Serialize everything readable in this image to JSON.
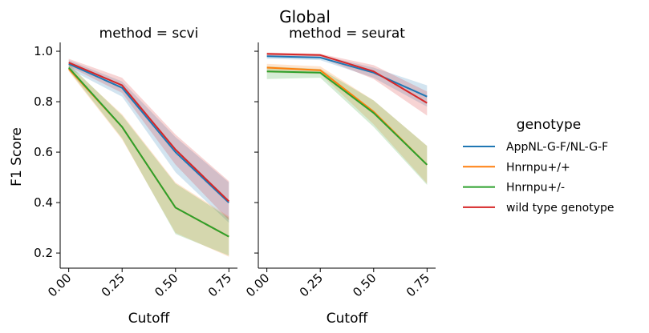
{
  "chart_data": {
    "type": "line",
    "title": "Global",
    "ylabel": "F1 Score",
    "ylim": [
      0.14,
      1.035
    ],
    "yticks": [
      0.2,
      0.4,
      0.6,
      0.8,
      1.0
    ],
    "ytick_labels": [
      "0.2",
      "0.4",
      "0.6",
      "0.8",
      "1.0"
    ],
    "legend": {
      "title": "genotype",
      "placement": "right"
    },
    "series_colors": {
      "AppNL-G-F/NL-G-F": "#1f77b4",
      "Hnrnpu+/+": "#ff7f0e",
      "Hnrnpu+/-": "#2ca02c",
      "wild type genotype": "#d62728"
    },
    "facets": [
      {
        "title": "method = scvi",
        "xlabel": "Cutoff",
        "xlim": [
          -0.04,
          0.79
        ],
        "xticks": [
          0,
          0.25,
          0.5,
          0.75
        ],
        "xtick_labels": [
          "0.00",
          "0.25",
          "0.50",
          "0.75"
        ],
        "x": [
          0,
          0.25,
          0.5,
          0.75
        ],
        "series": [
          {
            "name": "AppNL-G-F/NL-G-F",
            "values": [
              0.95,
              0.855,
              0.6,
              0.4
            ],
            "ci_low": [
              0.93,
              0.82,
              0.52,
              0.32
            ],
            "ci_high": [
              0.965,
              0.88,
              0.66,
              0.48
            ]
          },
          {
            "name": "Hnrnpu+/+",
            "values": [
              0.93,
              0.7,
              0.38,
              0.265
            ],
            "ci_low": [
              0.92,
              0.65,
              0.28,
              0.185
            ],
            "ci_high": [
              0.945,
              0.75,
              0.48,
              0.345
            ]
          },
          {
            "name": "Hnrnpu+/-",
            "values": [
              0.935,
              0.7,
              0.38,
              0.265
            ],
            "ci_low": [
              0.925,
              0.655,
              0.275,
              0.19
            ],
            "ci_high": [
              0.95,
              0.745,
              0.475,
              0.34
            ]
          },
          {
            "name": "wild type genotype",
            "values": [
              0.955,
              0.865,
              0.61,
              0.405
            ],
            "ci_low": [
              0.94,
              0.835,
              0.55,
              0.33
            ],
            "ci_high": [
              0.97,
              0.895,
              0.67,
              0.485
            ]
          }
        ]
      },
      {
        "title": "method = seurat",
        "xlabel": "Cutoff",
        "xlim": [
          -0.04,
          0.79
        ],
        "xticks": [
          0,
          0.25,
          0.5,
          0.75
        ],
        "xtick_labels": [
          "0.00",
          "0.25",
          "0.50",
          "0.75"
        ],
        "x": [
          0,
          0.25,
          0.5,
          0.75
        ],
        "series": [
          {
            "name": "AppNL-G-F/NL-G-F",
            "values": [
              0.98,
              0.975,
              0.915,
              0.82
            ],
            "ci_low": [
              0.97,
              0.965,
              0.895,
              0.78
            ],
            "ci_high": [
              0.99,
              0.985,
              0.935,
              0.865
            ]
          },
          {
            "name": "Hnrnpu+/+",
            "values": [
              0.935,
              0.925,
              0.76,
              0.55
            ],
            "ci_low": [
              0.915,
              0.91,
              0.71,
              0.475
            ],
            "ci_high": [
              0.95,
              0.94,
              0.805,
              0.625
            ]
          },
          {
            "name": "Hnrnpu+/-",
            "values": [
              0.92,
              0.915,
              0.755,
              0.55
            ],
            "ci_low": [
              0.89,
              0.895,
              0.7,
              0.47
            ],
            "ci_high": [
              0.94,
              0.93,
              0.805,
              0.625
            ]
          },
          {
            "name": "wild type genotype",
            "values": [
              0.99,
              0.985,
              0.92,
              0.795
            ],
            "ci_low": [
              0.98,
              0.975,
              0.89,
              0.745
            ],
            "ci_high": [
              0.995,
              0.99,
              0.945,
              0.84
            ]
          }
        ]
      }
    ]
  }
}
